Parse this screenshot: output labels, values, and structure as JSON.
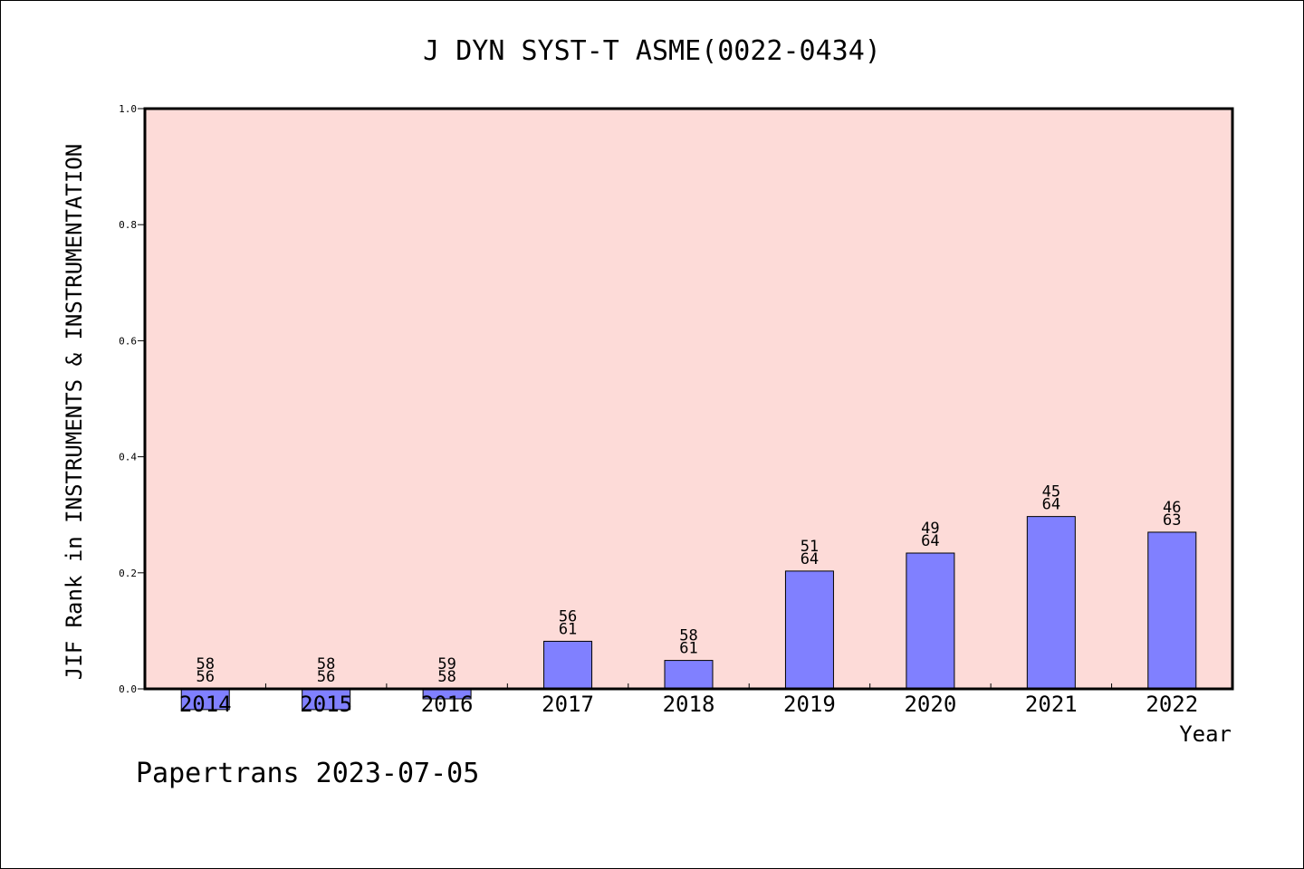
{
  "chart_data": {
    "type": "bar",
    "title": "J DYN SYST-T ASME(0022-0434)",
    "xlabel": "Year",
    "ylabel": "JIF Rank in INSTRUMENTS & INSTRUMENTATION",
    "ylim": [
      0,
      1.0
    ],
    "yticks": [
      "0.0",
      "0.2",
      "0.4",
      "0.6",
      "0.8",
      "1.0"
    ],
    "categories": [
      "2014",
      "2015",
      "2016",
      "2017",
      "2018",
      "2019",
      "2020",
      "2021",
      "2022"
    ],
    "values": [
      -0.0357,
      -0.0357,
      -0.0172,
      0.082,
      0.049,
      0.203,
      0.234,
      0.297,
      0.27
    ],
    "rank_labels": [
      "58",
      "58",
      "59",
      "56",
      "58",
      "51",
      "49",
      "45",
      "46"
    ],
    "total_labels": [
      "56",
      "56",
      "58",
      "61",
      "61",
      "64",
      "64",
      "64",
      "63"
    ],
    "grid": false,
    "colors": {
      "plot_background": "#fddbd8",
      "bar_fill": "#8080ff",
      "bar_stroke": "#000000"
    }
  },
  "footer": "Papertrans 2023-07-05"
}
